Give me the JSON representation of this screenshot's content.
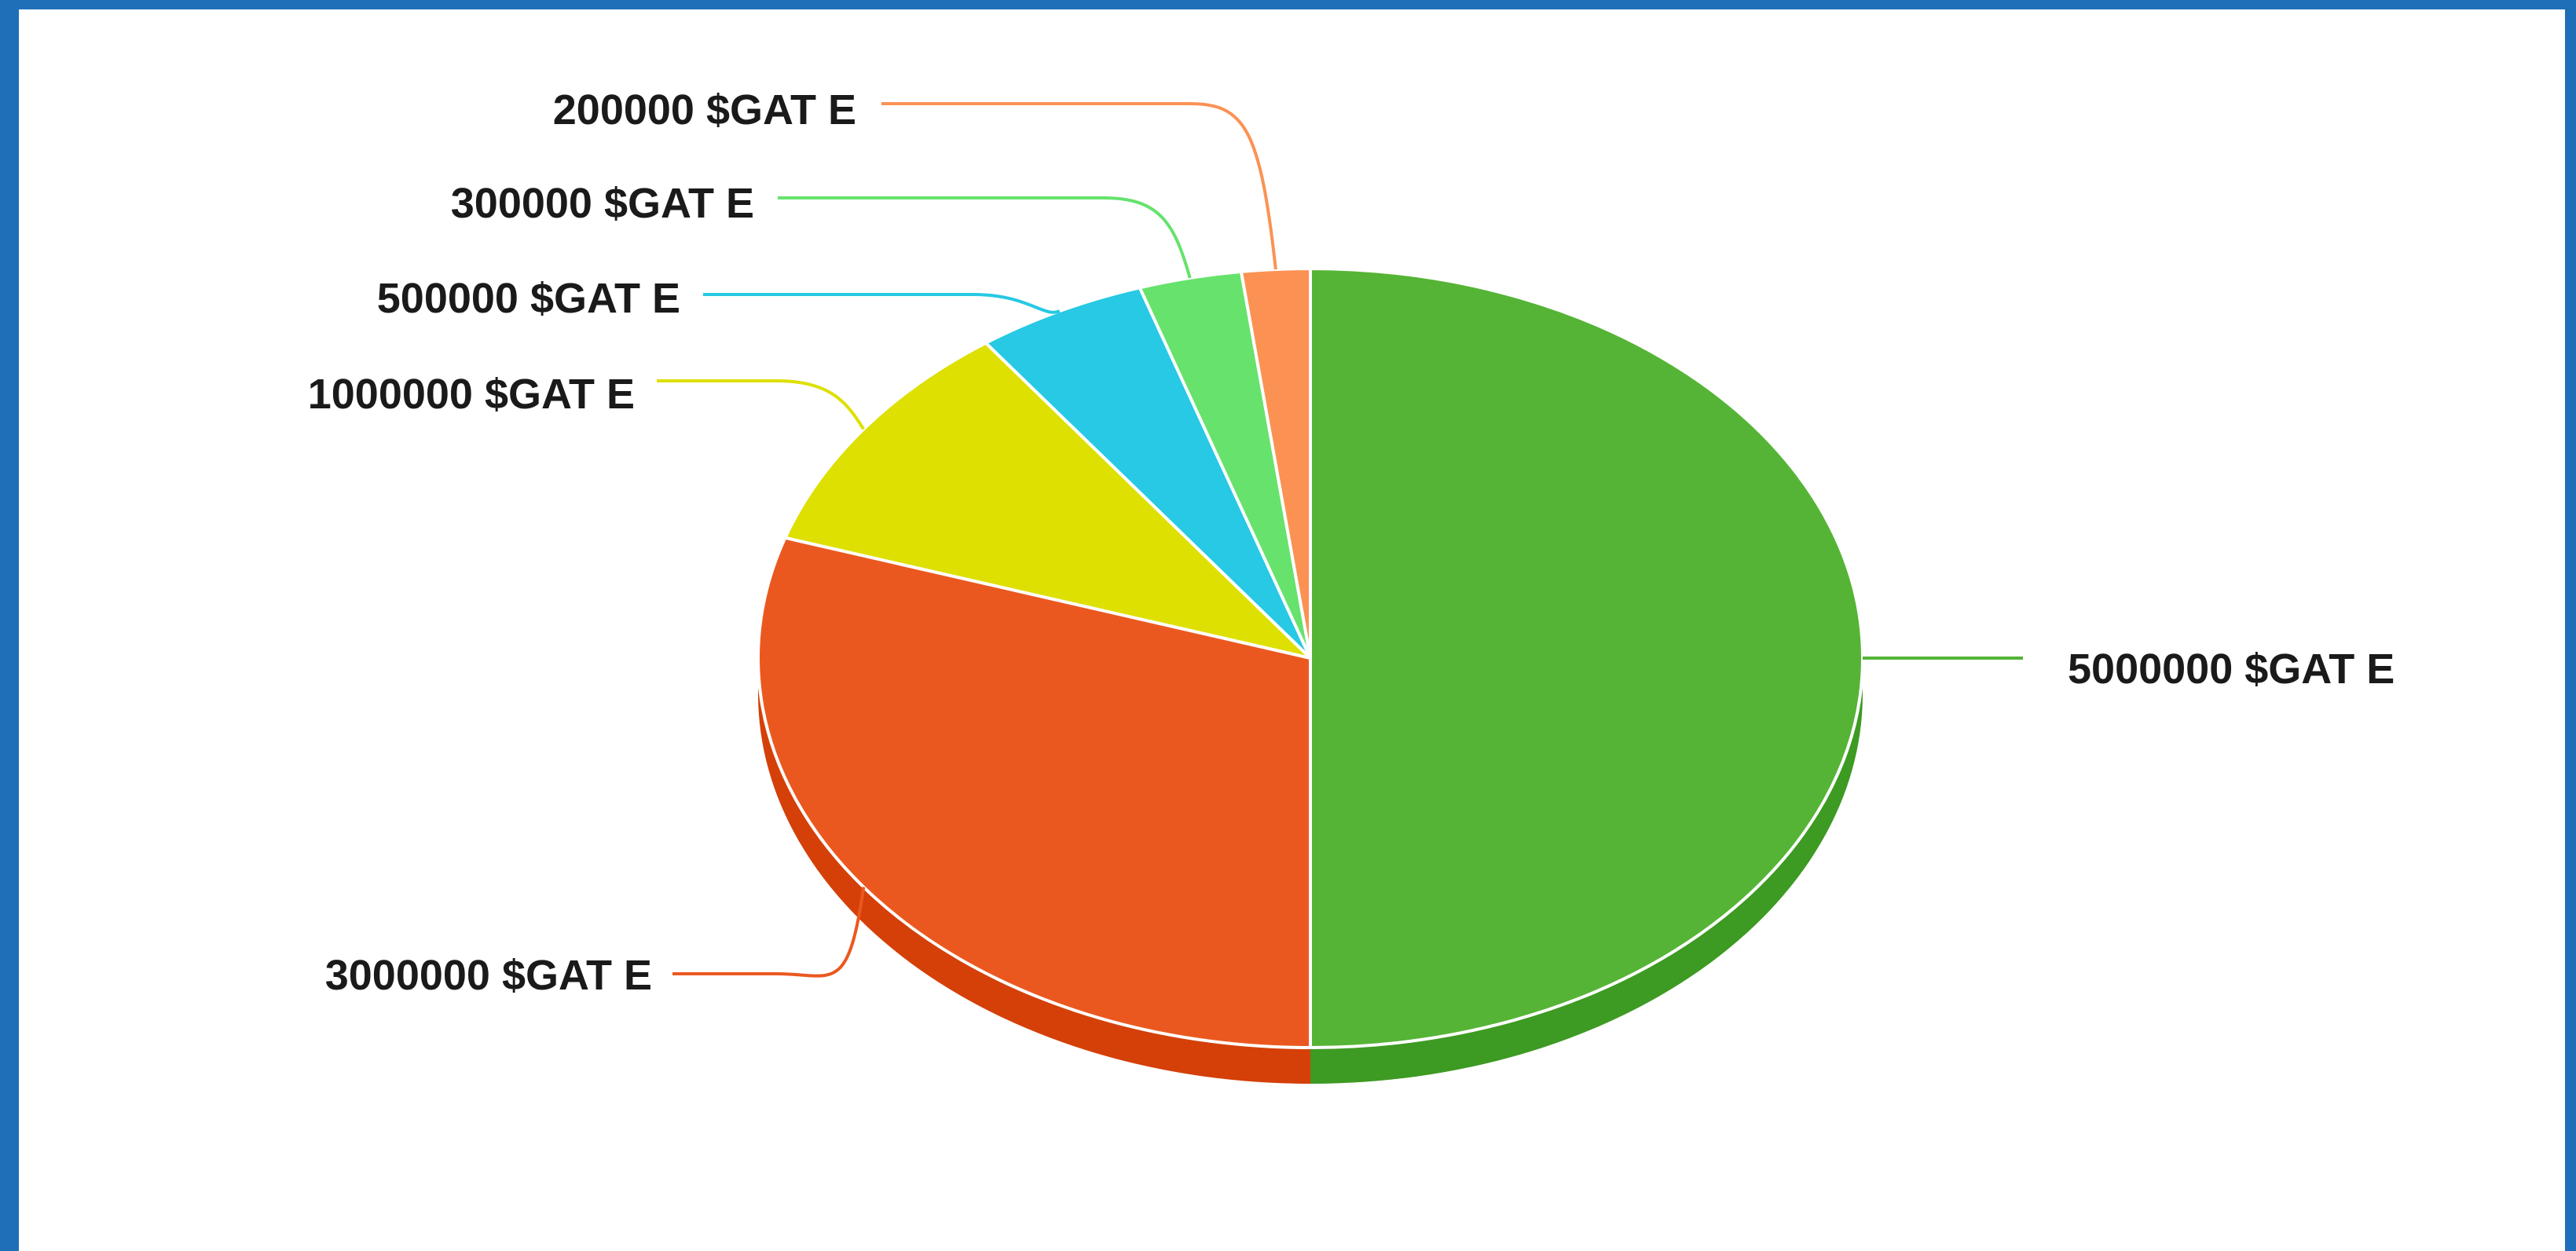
{
  "chart_data": {
    "type": "pie",
    "style": "3d",
    "categories": [
      "5000000 $GAT E",
      "3000000 $GAT E",
      "1000000 $GAT E",
      "500000 $GAT E",
      "300000 $GAT E",
      "200000 $GAT E"
    ],
    "values": [
      5000000,
      3000000,
      1000000,
      500000,
      300000,
      200000
    ],
    "colors": [
      "#55b435",
      "#eb581f",
      "#dde000",
      "#27c9e4",
      "#66e26d",
      "#fb9254"
    ],
    "side_colors": [
      "#3d9a22",
      "#d44008",
      "#b8ba00",
      "#1aa7be",
      "#4cc252",
      "#dd7434"
    ],
    "border_color": "#1e6fb8"
  }
}
